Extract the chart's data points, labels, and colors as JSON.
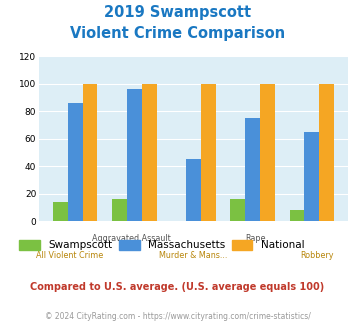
{
  "title_line1": "2019 Swampscott",
  "title_line2": "Violent Crime Comparison",
  "categories": [
    "All Violent Crime",
    "Aggravated Assault",
    "Murder & Mans...",
    "Rape",
    "Robbery"
  ],
  "swampscott": [
    14,
    16,
    0,
    16,
    8
  ],
  "massachusetts": [
    86,
    96,
    45,
    75,
    65
  ],
  "national": [
    100,
    100,
    100,
    100,
    100
  ],
  "swampscott_color": "#7bc142",
  "massachusetts_color": "#4a90d9",
  "national_color": "#f5a623",
  "title_color": "#1a78c2",
  "bg_color": "#ddeef6",
  "ylim": [
    0,
    120
  ],
  "yticks": [
    0,
    20,
    40,
    60,
    80,
    100,
    120
  ],
  "footnote1": "Compared to U.S. average. (U.S. average equals 100)",
  "footnote2": "© 2024 CityRating.com - https://www.cityrating.com/crime-statistics/",
  "footnote1_color": "#c0392b",
  "footnote2_color": "#999999",
  "legend_labels": [
    "Swampscott",
    "Massachusetts",
    "National"
  ],
  "bar_width": 0.25,
  "top_row_labels": [
    "",
    "Aggravated Assault",
    "",
    "Rape",
    ""
  ],
  "bot_row_labels": [
    "All Violent Crime",
    "",
    "Murder & Mans...",
    "",
    "Robbery"
  ]
}
